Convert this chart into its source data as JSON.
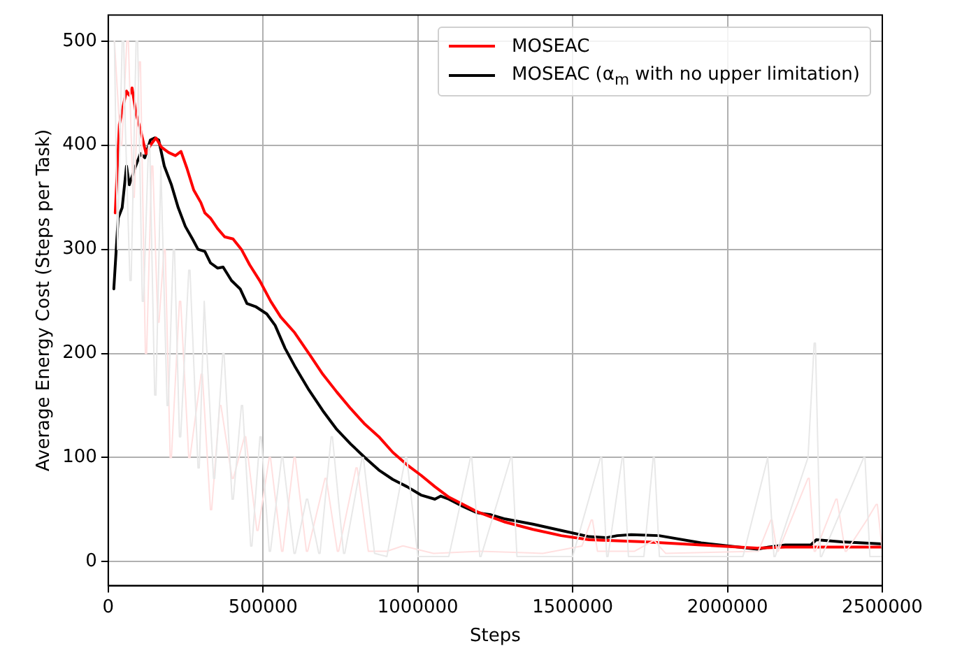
{
  "chart_data": {
    "type": "line",
    "xlabel": "Steps",
    "ylabel": "Average Energy Cost (Steps per Task)",
    "xlim": [
      0,
      2500000
    ],
    "xticks": [
      0,
      500000,
      1000000,
      1500000,
      2000000,
      2500000
    ],
    "ylim": [
      -23,
      525
    ],
    "yticks": [
      0,
      100,
      200,
      300,
      400,
      500
    ],
    "grid": true,
    "legend": "top right",
    "marker": "none",
    "line_style": "solid",
    "series": [
      {
        "color": "#e8e8e8",
        "x": [
          20000,
          30000,
          33000,
          45000,
          50000,
          55000,
          70000,
          74000,
          90000,
          95000,
          110000,
          114000,
          130000,
          134000,
          150000,
          154000,
          170000,
          174000,
          190000,
          194000,
          210000,
          214000,
          230000,
          234000,
          260000,
          264000,
          290000,
          294000,
          310000,
          314000,
          340000,
          344000,
          370000,
          374000,
          400000,
          404000,
          430000,
          434000,
          460000,
          464000,
          490000,
          494000,
          520000,
          524000,
          560000,
          564000,
          600000,
          604000,
          640000,
          644000,
          680000,
          684000,
          720000,
          724000,
          760000,
          764000,
          820000,
          824000,
          860000,
          900000,
          960000,
          964000,
          1000000,
          1100000,
          1170000,
          1174000,
          1200000,
          1204000,
          1300000,
          1304000,
          1320000,
          1500000,
          1590000,
          1594000,
          1610000,
          1614000,
          1660000,
          1664000,
          1680000,
          1730000,
          1760000,
          1764000,
          1780000,
          2050000,
          2130000,
          2134000,
          2150000,
          2154000,
          2260000,
          2280000,
          2284000,
          2300000,
          2304000,
          2440000,
          2444000,
          2460000,
          2500000
        ],
        "values": [
          500,
          300,
          300,
          500,
          500,
          420,
          270,
          270,
          500,
          500,
          250,
          250,
          400,
          400,
          160,
          160,
          380,
          380,
          150,
          150,
          300,
          300,
          120,
          120,
          280,
          280,
          90,
          90,
          250,
          250,
          80,
          80,
          200,
          200,
          60,
          60,
          150,
          150,
          15,
          15,
          120,
          120,
          10,
          10,
          100,
          100,
          8,
          8,
          60,
          60,
          8,
          8,
          120,
          120,
          8,
          8,
          100,
          100,
          8,
          5,
          100,
          100,
          5,
          5,
          100,
          100,
          5,
          5,
          100,
          100,
          5,
          5,
          100,
          100,
          5,
          5,
          100,
          100,
          5,
          5,
          100,
          100,
          5,
          5,
          100,
          100,
          5,
          5,
          100,
          210,
          210,
          5,
          5,
          100,
          100,
          5,
          5
        ]
      },
      {
        "color": "#ffe0e0",
        "x": [
          20000,
          40000,
          44000,
          60000,
          65000,
          80000,
          84000,
          100000,
          104000,
          120000,
          124000,
          140000,
          144000,
          160000,
          164000,
          180000,
          184000,
          200000,
          204000,
          230000,
          234000,
          260000,
          264000,
          300000,
          304000,
          330000,
          334000,
          360000,
          364000,
          400000,
          404000,
          440000,
          444000,
          480000,
          484000,
          520000,
          524000,
          560000,
          564000,
          600000,
          604000,
          640000,
          644000,
          700000,
          704000,
          740000,
          744000,
          800000,
          804000,
          840000,
          900000,
          950000,
          954000,
          1050000,
          1054000,
          1200000,
          1204000,
          1400000,
          1404000,
          1530000,
          1560000,
          1564000,
          1580000,
          1700000,
          1760000,
          1764000,
          1800000,
          2100000,
          2140000,
          2144000,
          2160000,
          2164000,
          2260000,
          2264000,
          2280000,
          2284000,
          2350000,
          2354000,
          2380000,
          2384000,
          2450000,
          2480000,
          2484000,
          2500000
        ],
        "values": [
          500,
          400,
          400,
          500,
          500,
          350,
          350,
          480,
          480,
          200,
          200,
          380,
          380,
          230,
          230,
          300,
          300,
          100,
          100,
          250,
          250,
          100,
          100,
          180,
          180,
          50,
          50,
          150,
          150,
          80,
          80,
          120,
          120,
          30,
          30,
          100,
          100,
          10,
          10,
          100,
          100,
          10,
          10,
          80,
          80,
          10,
          10,
          90,
          90,
          10,
          10,
          15,
          15,
          8,
          8,
          10,
          10,
          8,
          8,
          15,
          40,
          40,
          10,
          10,
          20,
          20,
          8,
          10,
          40,
          40,
          10,
          10,
          80,
          80,
          10,
          10,
          60,
          60,
          10,
          10,
          40,
          55,
          55,
          10
        ]
      },
      {
        "name": "MOSEAC",
        "color": "#ff0000",
        "x": [
          22600,
          36000,
          50000,
          59000,
          68000,
          77000,
          90000,
          104000,
          122000,
          136000,
          154000,
          172000,
          195000,
          217000,
          235000,
          254000,
          276000,
          299000,
          312000,
          330000,
          353000,
          376000,
          403000,
          430000,
          457000,
          489000,
          525000,
          557000,
          602000,
          648000,
          693000,
          738000,
          783000,
          829000,
          874000,
          919000,
          965000,
          1010000,
          1055000,
          1100000,
          1146000,
          1191000,
          1236000,
          1282000,
          1372000,
          1463000,
          1553000,
          1644000,
          1734000,
          1915000,
          2096000,
          2187000,
          2368000,
          2500000
        ],
        "values": [
          335,
          420,
          440,
          452,
          448,
          455,
          430,
          415,
          392,
          400,
          407,
          398,
          393,
          390,
          394,
          378,
          357,
          345,
          335,
          330,
          320,
          312,
          310,
          300,
          285,
          270,
          250,
          235,
          220,
          200,
          180,
          163,
          147,
          132,
          120,
          105,
          93,
          83,
          72,
          62,
          55,
          48,
          43,
          38,
          31,
          25,
          21,
          20,
          19,
          16,
          13,
          14,
          14,
          14
        ]
      },
      {
        "name": "MOSEAC (α$_{m}$ with no upper limitation)",
        "color": "#000000",
        "x": [
          18000,
          32000,
          45000,
          59000,
          68000,
          86000,
          104000,
          118000,
          136000,
          150000,
          163000,
          181000,
          204000,
          226000,
          249000,
          272000,
          290000,
          312000,
          330000,
          353000,
          371000,
          398000,
          426000,
          448000,
          476000,
          512000,
          539000,
          571000,
          602000,
          648000,
          693000,
          738000,
          783000,
          829000,
          874000,
          919000,
          965000,
          1010000,
          1055000,
          1074000,
          1100000,
          1146000,
          1191000,
          1236000,
          1282000,
          1372000,
          1463000,
          1553000,
          1608000,
          1644000,
          1689000,
          1779000,
          1915000,
          2096000,
          2133000,
          2187000,
          2269000,
          2287000,
          2368000,
          2436000,
          2500000
        ],
        "values": [
          262,
          330,
          340,
          380,
          362,
          378,
          392,
          388,
          405,
          407,
          405,
          380,
          362,
          340,
          322,
          310,
          300,
          298,
          287,
          282,
          283,
          270,
          262,
          248,
          245,
          238,
          227,
          205,
          188,
          165,
          145,
          127,
          113,
          100,
          88,
          79,
          72,
          64,
          60,
          63,
          60,
          53,
          47,
          45,
          41,
          36,
          30,
          24,
          23,
          25,
          26,
          25,
          18,
          12,
          14,
          16,
          16,
          21,
          19,
          18,
          17
        ]
      }
    ]
  }
}
